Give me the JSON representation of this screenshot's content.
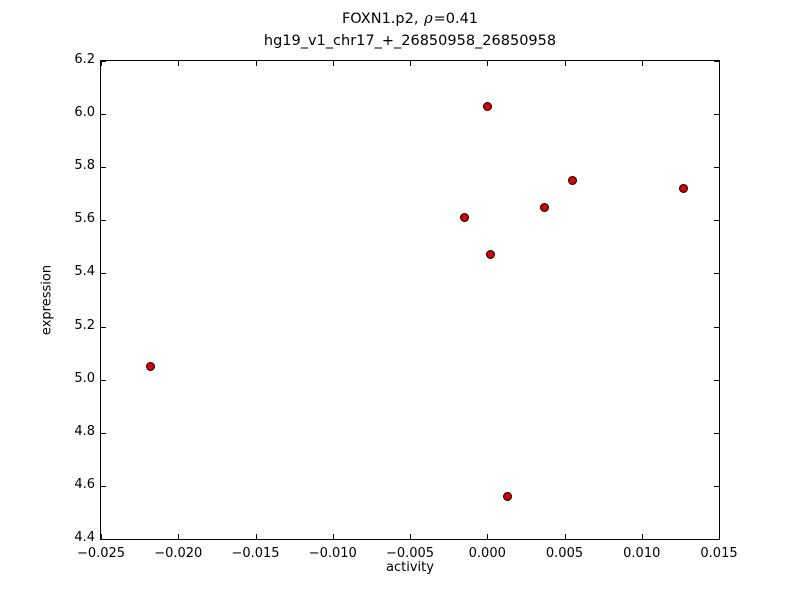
{
  "chart_data": {
    "type": "scatter",
    "title_part1": "FOXN1.p2, ",
    "title_rho": "ρ",
    "title_part2": "=0.41",
    "title_line2": "hg19_v1_chr17_+_26850958_26850958",
    "xlabel": "activity",
    "ylabel": "expression",
    "xlim": [
      -0.025,
      0.015
    ],
    "ylim": [
      4.4,
      6.2
    ],
    "x_ticks": [
      -0.025,
      -0.02,
      -0.015,
      -0.01,
      -0.005,
      0.0,
      0.005,
      0.01,
      0.015
    ],
    "x_tick_labels": [
      "−0.025",
      "−0.020",
      "−0.015",
      "−0.010",
      "−0.005",
      "0.000",
      "0.005",
      "0.010",
      "0.015"
    ],
    "y_ticks": [
      4.4,
      4.6,
      4.8,
      5.0,
      5.2,
      5.4,
      5.6,
      5.8,
      6.0,
      6.2
    ],
    "y_tick_labels": [
      "4.4",
      "4.6",
      "4.8",
      "5.0",
      "5.2",
      "5.4",
      "5.6",
      "5.8",
      "6.0",
      "6.2"
    ],
    "points": [
      {
        "x": -0.0218,
        "y": 5.05
      },
      {
        "x": -0.0015,
        "y": 5.61
      },
      {
        "x": 0.0,
        "y": 6.03
      },
      {
        "x": 0.0002,
        "y": 5.47
      },
      {
        "x": 0.0013,
        "y": 4.56
      },
      {
        "x": 0.0037,
        "y": 5.65
      },
      {
        "x": 0.0055,
        "y": 5.75
      },
      {
        "x": 0.0127,
        "y": 5.72
      }
    ],
    "marker_color": "#d50000",
    "marker_edge_color": "#000000",
    "grid": false,
    "legend": null
  }
}
